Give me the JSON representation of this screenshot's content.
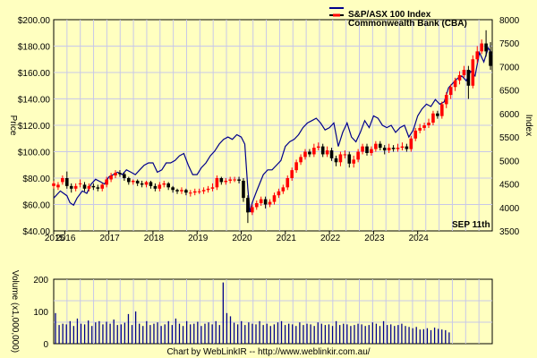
{
  "chart_data": [
    {
      "type": "candlestick+line",
      "legend": {
        "placement": "top-right",
        "entries": [
          {
            "label": "S&P/ASX 100 Index",
            "color": "#00008b",
            "kind": "line"
          },
          {
            "label": "Commonwealth Bank (CBA)",
            "color": "#000000",
            "kind": "candles"
          }
        ]
      },
      "ylabel_left": "Price",
      "ylabel_right": "Index",
      "date_label": "SEP 11th",
      "price_ylim": [
        40,
        200
      ],
      "price_ticks": [
        "$40.00",
        "$60.00",
        "$80.00",
        "$100.00",
        "$120.00",
        "$140.00",
        "$160.00",
        "$180.00",
        "$200.00"
      ],
      "index_ylim": [
        3500,
        8000
      ],
      "index_ticks": [
        "3500",
        "4000",
        "4500",
        "5000",
        "5500",
        "6000",
        "6500",
        "7000",
        "7500",
        "8000"
      ],
      "x_range": [
        2015.75,
        2025.69
      ],
      "x_ticks": [
        {
          "label": "2015",
          "x": 2015.75
        },
        {
          "label": "2016",
          "x": 2016.0
        },
        {
          "label": "2017",
          "x": 2017.0
        },
        {
          "label": "2018",
          "x": 2018.0
        },
        {
          "label": "2019",
          "x": 2019.0
        },
        {
          "label": "2020",
          "x": 2020.0
        },
        {
          "label": "2021",
          "x": 2021.0
        },
        {
          "label": "2022",
          "x": 2022.0
        },
        {
          "label": "2023",
          "x": 2023.0
        },
        {
          "label": "2024",
          "x": 2024.0
        }
      ],
      "up_color": "#ff0000",
      "down_color": "#000000",
      "index_color": "#00008b",
      "grid": true,
      "index_series": {
        "name": "S&P/ASX 100 Index",
        "x": [
          2015.75,
          2015.9,
          2016.05,
          2016.12,
          2016.2,
          2016.28,
          2016.4,
          2016.5,
          2016.6,
          2016.7,
          2016.8,
          2016.9,
          2017.0,
          2017.1,
          2017.2,
          2017.3,
          2017.4,
          2017.5,
          2017.6,
          2017.7,
          2017.8,
          2017.9,
          2018.0,
          2018.1,
          2018.2,
          2018.3,
          2018.4,
          2018.5,
          2018.6,
          2018.7,
          2018.8,
          2018.9,
          2019.0,
          2019.1,
          2019.2,
          2019.3,
          2019.4,
          2019.5,
          2019.6,
          2019.7,
          2019.8,
          2019.9,
          2020.0,
          2020.08,
          2020.15,
          2020.2,
          2020.25,
          2020.35,
          2020.5,
          2020.6,
          2020.7,
          2020.8,
          2020.9,
          2021.0,
          2021.1,
          2021.2,
          2021.3,
          2021.4,
          2021.5,
          2021.6,
          2021.7,
          2021.8,
          2021.9,
          2022.0,
          2022.1,
          2022.2,
          2022.3,
          2022.4,
          2022.5,
          2022.6,
          2022.7,
          2022.8,
          2022.9,
          2023.0,
          2023.1,
          2023.2,
          2023.3,
          2023.4,
          2023.5,
          2023.6,
          2023.7,
          2023.8,
          2023.9,
          2024.0,
          2024.1,
          2024.2,
          2024.3,
          2024.4,
          2024.5,
          2024.6,
          2024.7,
          2024.8,
          2024.9,
          2025.0,
          2025.1,
          2025.2,
          2025.3,
          2025.4,
          2025.5,
          2025.6,
          2025.69
        ],
        "values": [
          4200,
          4350,
          4250,
          4100,
          4050,
          4200,
          4350,
          4300,
          4500,
          4600,
          4550,
          4500,
          4650,
          4700,
          4750,
          4700,
          4800,
          4750,
          4700,
          4800,
          4900,
          4950,
          4950,
          4750,
          4800,
          4950,
          4950,
          5000,
          5100,
          5150,
          4900,
          4700,
          4700,
          4850,
          4950,
          5100,
          5200,
          5350,
          5450,
          5500,
          5450,
          5550,
          5500,
          5350,
          4400,
          3900,
          4100,
          4350,
          4700,
          4800,
          4800,
          4900,
          5000,
          5300,
          5400,
          5450,
          5550,
          5700,
          5800,
          5850,
          5900,
          5800,
          5650,
          5700,
          5800,
          5300,
          5600,
          5800,
          5500,
          5400,
          5600,
          5850,
          5700,
          5950,
          5900,
          5750,
          5700,
          5750,
          5600,
          5700,
          5750,
          5500,
          5650,
          5950,
          6100,
          6200,
          6150,
          6300,
          6200,
          6250,
          6550,
          6650,
          6750,
          6800,
          6700,
          6900,
          6800,
          7300,
          7100,
          7400,
          7250
        ]
      },
      "price_series": {
        "name": "Commonwealth Bank (CBA)",
        "x": [
          2015.75,
          2015.85,
          2015.95,
          2016.05,
          2016.15,
          2016.25,
          2016.35,
          2016.45,
          2016.55,
          2016.65,
          2016.75,
          2016.85,
          2016.95,
          2017.05,
          2017.15,
          2017.25,
          2017.35,
          2017.45,
          2017.55,
          2017.65,
          2017.75,
          2017.85,
          2017.95,
          2018.05,
          2018.15,
          2018.25,
          2018.35,
          2018.45,
          2018.55,
          2018.65,
          2018.75,
          2018.85,
          2018.95,
          2019.05,
          2019.15,
          2019.25,
          2019.35,
          2019.45,
          2019.55,
          2019.65,
          2019.75,
          2019.85,
          2019.95,
          2020.05,
          2020.15,
          2020.25,
          2020.35,
          2020.45,
          2020.55,
          2020.65,
          2020.75,
          2020.85,
          2020.95,
          2021.05,
          2021.15,
          2021.25,
          2021.35,
          2021.45,
          2021.55,
          2021.65,
          2021.75,
          2021.85,
          2021.95,
          2022.05,
          2022.15,
          2022.25,
          2022.35,
          2022.45,
          2022.55,
          2022.65,
          2022.75,
          2022.85,
          2022.95,
          2023.05,
          2023.15,
          2023.25,
          2023.35,
          2023.45,
          2023.55,
          2023.65,
          2023.75,
          2023.85,
          2023.95,
          2024.05,
          2024.15,
          2024.25,
          2024.35,
          2024.45,
          2024.55,
          2024.65,
          2024.75,
          2024.85,
          2024.95,
          2025.05,
          2025.15,
          2025.25,
          2025.35,
          2025.45,
          2025.55,
          2025.65
        ],
        "open": [
          74,
          73,
          77,
          80,
          74,
          72,
          76,
          75,
          72,
          74,
          73,
          72,
          75,
          79,
          82,
          84,
          83,
          80,
          77,
          78,
          76,
          75,
          77,
          74,
          72,
          75,
          76,
          73,
          71,
          70,
          71,
          69,
          69,
          70,
          70,
          71,
          72,
          73,
          80,
          77,
          78,
          79,
          79,
          78,
          65,
          54,
          58,
          61,
          64,
          60,
          62,
          67,
          70,
          73,
          80,
          86,
          92,
          96,
          100,
          98,
          103,
          104,
          98,
          101,
          95,
          92,
          98,
          98,
          91,
          94,
          100,
          104,
          99,
          102,
          106,
          103,
          101,
          103,
          102,
          103,
          104,
          102,
          110,
          116,
          118,
          120,
          122,
          129,
          127,
          136,
          143,
          149,
          154,
          158,
          162,
          150,
          170,
          176,
          182,
          176
        ],
        "close": [
          76,
          75,
          80,
          74,
          72,
          74,
          76,
          72,
          74,
          73,
          72,
          75,
          79,
          82,
          84,
          83,
          80,
          77,
          78,
          76,
          75,
          77,
          74,
          72,
          75,
          76,
          73,
          71,
          70,
          71,
          69,
          69,
          70,
          70,
          71,
          72,
          73,
          80,
          77,
          78,
          79,
          79,
          78,
          65,
          54,
          58,
          61,
          64,
          60,
          62,
          67,
          70,
          73,
          80,
          86,
          92,
          96,
          100,
          98,
          103,
          104,
          98,
          101,
          95,
          92,
          98,
          98,
          91,
          94,
          100,
          104,
          99,
          102,
          106,
          103,
          101,
          103,
          102,
          103,
          104,
          102,
          110,
          116,
          118,
          120,
          122,
          129,
          127,
          136,
          143,
          149,
          154,
          158,
          162,
          150,
          170,
          176,
          182,
          176,
          165
        ],
        "high": [
          78,
          77,
          82,
          85,
          76,
          76,
          79,
          77,
          76,
          76,
          75,
          76,
          81,
          84,
          86,
          86,
          84,
          81,
          79,
          79,
          78,
          78,
          78,
          76,
          77,
          78,
          77,
          74,
          72,
          73,
          72,
          71,
          72,
          72,
          73,
          74,
          76,
          82,
          81,
          80,
          81,
          81,
          81,
          80,
          67,
          60,
          63,
          66,
          66,
          64,
          69,
          72,
          75,
          82,
          88,
          94,
          98,
          102,
          102,
          106,
          107,
          106,
          104,
          103,
          97,
          100,
          101,
          100,
          97,
          102,
          106,
          106,
          104,
          108,
          108,
          105,
          106,
          105,
          106,
          107,
          106,
          112,
          118,
          121,
          122,
          125,
          131,
          131,
          138,
          145,
          151,
          156,
          161,
          165,
          165,
          173,
          180,
          185,
          192,
          183
        ],
        "low": [
          72,
          71,
          75,
          72,
          69,
          70,
          73,
          70,
          70,
          71,
          70,
          70,
          73,
          77,
          80,
          81,
          78,
          75,
          75,
          74,
          73,
          73,
          72,
          70,
          70,
          73,
          71,
          69,
          68,
          68,
          67,
          66,
          67,
          68,
          68,
          69,
          70,
          71,
          75,
          75,
          76,
          77,
          76,
          62,
          46,
          52,
          56,
          59,
          57,
          58,
          60,
          65,
          68,
          71,
          78,
          84,
          90,
          94,
          96,
          96,
          101,
          96,
          96,
          93,
          89,
          89,
          95,
          88,
          88,
          92,
          98,
          97,
          97,
          100,
          101,
          98,
          99,
          100,
          100,
          101,
          100,
          100,
          108,
          114,
          116,
          118,
          120,
          125,
          125,
          133,
          140,
          146,
          151,
          156,
          140,
          148,
          167,
          174,
          172,
          162
        ]
      }
    },
    {
      "type": "bar",
      "ylabel": "Volume (x1,000,000)",
      "ylim": [
        0,
        200
      ],
      "y_ticks": [
        "0",
        "100",
        "200"
      ],
      "color": "#00008b",
      "x_start": 2015.75,
      "x_step": 0.0833,
      "values": [
        95,
        58,
        62,
        60,
        70,
        55,
        78,
        62,
        60,
        72,
        55,
        66,
        70,
        60,
        68,
        62,
        75,
        58,
        60,
        65,
        92,
        58,
        100,
        62,
        55,
        70,
        58,
        62,
        66,
        55,
        60,
        70,
        58,
        78,
        62,
        55,
        70,
        60,
        62,
        68,
        55,
        62,
        66,
        60,
        70,
        58,
        190,
        95,
        85,
        65,
        60,
        70,
        58,
        66,
        62,
        60,
        70,
        58,
        62,
        55,
        60,
        66,
        70,
        58,
        62,
        60,
        55,
        66,
        58,
        62,
        60,
        55,
        66,
        62,
        58,
        60,
        55,
        70,
        58,
        62,
        60,
        55,
        58,
        62,
        60,
        55,
        58,
        66,
        62,
        55,
        70,
        58,
        60,
        55,
        58,
        62,
        55,
        52,
        48,
        52,
        44,
        45,
        48,
        42,
        50,
        46,
        44,
        42,
        35
      ]
    }
  ],
  "footer_credit": "Chart by WebLinkIR -- http://www.weblinkir.com.au/"
}
